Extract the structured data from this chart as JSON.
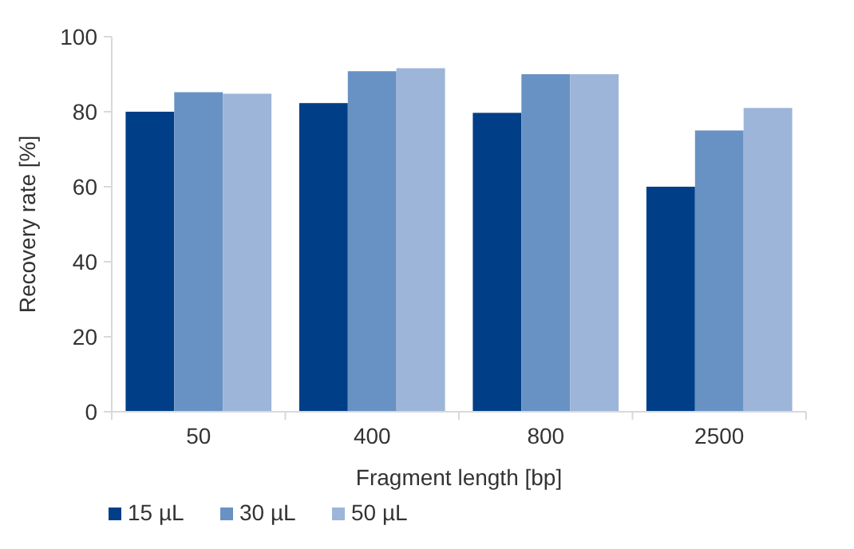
{
  "chart_data": {
    "type": "bar",
    "xlabel": "Fragment length [bp]",
    "ylabel": "Recovery rate [%]",
    "categories": [
      "50",
      "400",
      "800",
      "2500"
    ],
    "series": [
      {
        "name": "15 µL",
        "color": "#003f87",
        "values": [
          80,
          82.3,
          79.7,
          60
        ]
      },
      {
        "name": "30 µL",
        "color": "#6892c3",
        "values": [
          85.2,
          90.8,
          90,
          75
        ]
      },
      {
        "name": "50 µL",
        "color": "#9db5d9",
        "values": [
          84.8,
          91.6,
          90,
          81
        ]
      }
    ],
    "ylim": [
      0,
      100
    ],
    "yticks": [
      0,
      20,
      40,
      60,
      80,
      100
    ],
    "grid": false,
    "legend": "bottom left"
  }
}
